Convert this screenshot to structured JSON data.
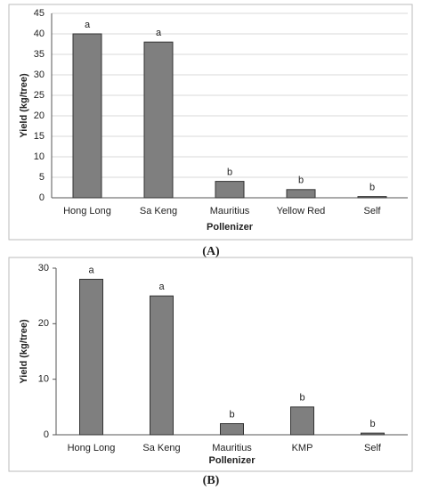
{
  "chart_data": [
    {
      "type": "bar",
      "panel_label": "(A)",
      "y_label": "Yield (kg/tree)",
      "x_label": "Pollenizer",
      "categories": [
        "Hong Long",
        "Sa Keng",
        "Mauritius",
        "Yellow Red",
        "Self"
      ],
      "values": [
        40,
        38,
        4,
        2,
        0.3
      ],
      "annotations": [
        "a",
        "a",
        "b",
        "b",
        "b"
      ],
      "color": "#7f7f7f",
      "ylim": [
        0,
        45
      ],
      "yticks": [
        0,
        5,
        10,
        15,
        20,
        25,
        30,
        35,
        40,
        45
      ],
      "grid": true
    },
    {
      "type": "bar",
      "panel_label": "(B)",
      "y_label": "Yield (kg/tree)",
      "x_label": "Pollenizer",
      "categories": [
        "Hong Long",
        "Sa Keng",
        "Mauritius",
        "KMP",
        "Self"
      ],
      "values": [
        28,
        25,
        2,
        5,
        0.3
      ],
      "annotations": [
        "a",
        "a",
        "b",
        "b",
        "b"
      ],
      "color": "#7f7f7f",
      "ylim": [
        0,
        30
      ],
      "yticks": [
        0,
        10,
        20,
        30
      ],
      "grid": false
    }
  ]
}
